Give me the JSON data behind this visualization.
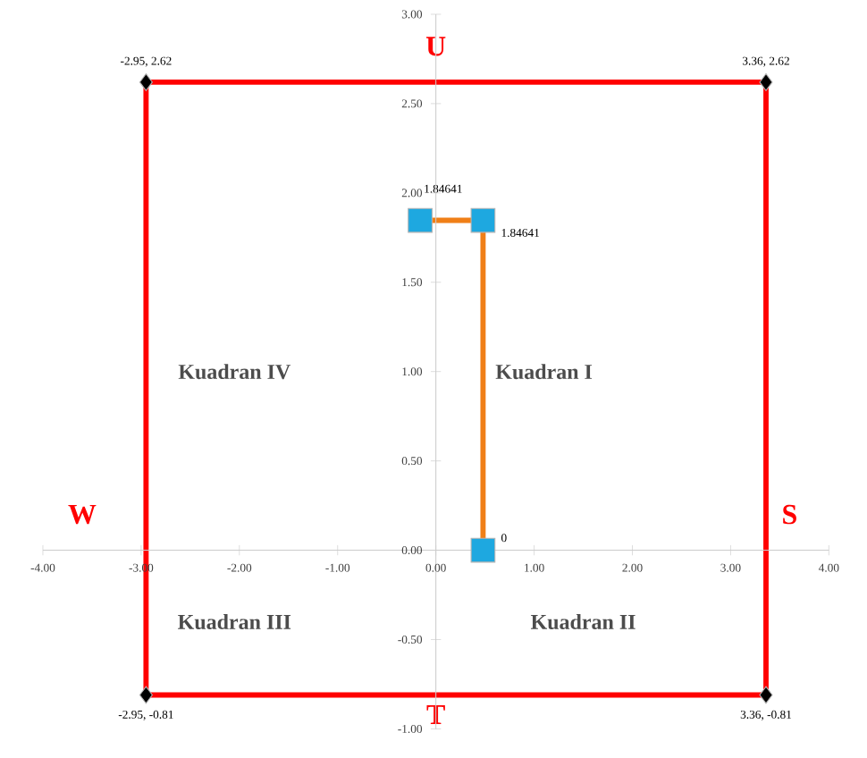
{
  "chart_data": {
    "type": "scatter",
    "xlim": [
      -4,
      4
    ],
    "ylim": [
      -1,
      3
    ],
    "xticks": [
      {
        "value": -4,
        "label": "-4.00"
      },
      {
        "value": -3,
        "label": "-3.00"
      },
      {
        "value": -2,
        "label": "-2.00"
      },
      {
        "value": -1,
        "label": "-1.00"
      },
      {
        "value": 0,
        "label": "0.00"
      },
      {
        "value": 1,
        "label": "1.00"
      },
      {
        "value": 2,
        "label": "2.00"
      },
      {
        "value": 3,
        "label": "3.00"
      },
      {
        "value": 4,
        "label": "4.00"
      }
    ],
    "yticks": [
      {
        "value": -1,
        "label": "-1.00"
      },
      {
        "value": -0.5,
        "label": "-0.50"
      },
      {
        "value": 0,
        "label": "0.00"
      },
      {
        "value": 0.5,
        "label": "0.50"
      },
      {
        "value": 1,
        "label": "1.00"
      },
      {
        "value": 1.5,
        "label": "1.50"
      },
      {
        "value": 2,
        "label": "2.00"
      },
      {
        "value": 2.5,
        "label": "2.50"
      },
      {
        "value": 3,
        "label": "3.00"
      }
    ],
    "grid": false,
    "series": [
      {
        "color": "#000000",
        "marker": "diamond",
        "x": [
          -2.95,
          3.36,
          3.36,
          -2.95
        ],
        "values": [
          2.62,
          2.62,
          -0.81,
          -0.81
        ],
        "value_labels": [
          "-2.95, 2.62",
          "3.36, 2.62",
          "3.36, -0.81",
          "-2.95, -0.81"
        ]
      },
      {
        "type": "line",
        "color": "#ff0000",
        "marker": "none",
        "x": [
          -2.95,
          -2.95,
          3.36,
          3.36
        ],
        "values": [
          -0.81,
          2.62,
          2.62,
          -0.81
        ]
      },
      {
        "type": "line",
        "color": "#ff0000",
        "marker": "none",
        "x": [
          -2.95,
          3.36
        ],
        "values": [
          -0.81,
          -0.81
        ]
      },
      {
        "type": "line",
        "color": "#f07f17",
        "marker": "none",
        "x": [
          -0.16,
          0.48,
          0.48
        ],
        "values": [
          1.84641,
          1.84641,
          0
        ]
      },
      {
        "color": "#1ea8e0",
        "marker": "square",
        "x": [
          -0.16,
          0.48,
          0.48
        ],
        "values": [
          1.84641,
          1.84641,
          0
        ],
        "value_labels": [
          "1.84641",
          "1.84641",
          "0"
        ]
      }
    ],
    "annotations": [
      "U",
      "S",
      "T",
      "W",
      "Kuadran I",
      "Kuadran II",
      "Kuadran III",
      "Kuadran IV"
    ]
  }
}
